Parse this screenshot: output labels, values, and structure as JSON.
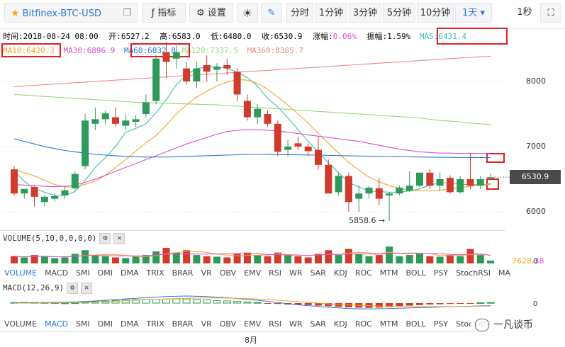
{
  "toolbar": {
    "symbol": "Bitfinex-BTC-USD",
    "indicators_label": "指标",
    "settings_label": "设置",
    "intervals": [
      "分时",
      "1分钟",
      "3分钟",
      "5分钟",
      "10分钟",
      "1天"
    ],
    "active_interval": "1天",
    "refresh_label": "1秒",
    "icons": [
      "star-icon",
      "popout-icon",
      "indicators-icon",
      "gear-icon",
      "theme-icon",
      "draw-icon",
      "fullscreen-icon"
    ]
  },
  "info": {
    "time": "时间:2018-08-24 08:00",
    "open": "开:6527.2",
    "high": "高:6583.0",
    "low": "低:6480.0",
    "close": "收:6530.9",
    "change_label": "涨幅:",
    "change_value": "0.06%",
    "amplitude": "振幅:1.59%",
    "ma5": "MA5:6431.4",
    "ma10": "MA10:6420.3",
    "ma30": "MA30:6896.9",
    "ma60": "MA60:6832.8",
    "ma120": "MA120:7337.5",
    "ma360": "MA360:8385.7"
  },
  "colors": {
    "up": "#2e9a5a",
    "down": "#d13b2e",
    "ma5": "#3cc0b0",
    "ma10": "#f2a62a",
    "ma30": "#d94fd0",
    "ma60": "#2a78d8",
    "ma120": "#9bd67a",
    "ma360": "#f08a8a",
    "highlight": "#e02020"
  },
  "chart_data": {
    "type": "candlestick",
    "title": "Bitfinex-BTC-USD",
    "y_ticks": [
      6000,
      7000,
      8000
    ],
    "ylim": [
      5650,
      8600
    ],
    "current_price": "6530.9",
    "low_annotation": "5858.6 →",
    "x_tick_label": "8月",
    "candles": [
      {
        "o": 6650,
        "h": 6700,
        "l": 6250,
        "c": 6280
      },
      {
        "o": 6280,
        "h": 6350,
        "l": 6200,
        "c": 6350
      },
      {
        "o": 6380,
        "h": 6400,
        "l": 6080,
        "c": 6230
      },
      {
        "o": 6150,
        "h": 6250,
        "l": 6080,
        "c": 6230
      },
      {
        "o": 6200,
        "h": 6280,
        "l": 6160,
        "c": 6240
      },
      {
        "o": 6250,
        "h": 6380,
        "l": 6200,
        "c": 6330
      },
      {
        "o": 6360,
        "h": 6620,
        "l": 6330,
        "c": 6580
      },
      {
        "o": 6700,
        "h": 7500,
        "l": 6650,
        "c": 7400
      },
      {
        "o": 7350,
        "h": 7600,
        "l": 7250,
        "c": 7420
      },
      {
        "o": 7420,
        "h": 7550,
        "l": 7330,
        "c": 7510
      },
      {
        "o": 7450,
        "h": 7600,
        "l": 7300,
        "c": 7350
      },
      {
        "o": 7320,
        "h": 7500,
        "l": 7250,
        "c": 7400
      },
      {
        "o": 7380,
        "h": 7480,
        "l": 7300,
        "c": 7420
      },
      {
        "o": 7500,
        "h": 7800,
        "l": 7450,
        "c": 7680
      },
      {
        "o": 7700,
        "h": 8400,
        "l": 7650,
        "c": 8350
      },
      {
        "o": 8450,
        "h": 8600,
        "l": 8050,
        "c": 8300
      },
      {
        "o": 8350,
        "h": 8550,
        "l": 8200,
        "c": 8450
      },
      {
        "o": 8200,
        "h": 8300,
        "l": 7950,
        "c": 8000
      },
      {
        "o": 8000,
        "h": 8300,
        "l": 7900,
        "c": 8200
      },
      {
        "o": 8250,
        "h": 8400,
        "l": 8000,
        "c": 8150
      },
      {
        "o": 8180,
        "h": 8280,
        "l": 8000,
        "c": 8220
      },
      {
        "o": 8250,
        "h": 8350,
        "l": 8100,
        "c": 8200
      },
      {
        "o": 8150,
        "h": 8200,
        "l": 7700,
        "c": 7800
      },
      {
        "o": 7700,
        "h": 7800,
        "l": 7400,
        "c": 7450
      },
      {
        "o": 7450,
        "h": 7650,
        "l": 7350,
        "c": 7580
      },
      {
        "o": 7500,
        "h": 7550,
        "l": 7300,
        "c": 7350
      },
      {
        "o": 7350,
        "h": 7400,
        "l": 6850,
        "c": 6920
      },
      {
        "o": 6950,
        "h": 7100,
        "l": 6850,
        "c": 7000
      },
      {
        "o": 7050,
        "h": 7150,
        "l": 6950,
        "c": 7000
      },
      {
        "o": 7000,
        "h": 7050,
        "l": 6850,
        "c": 6930
      },
      {
        "o": 6950,
        "h": 7150,
        "l": 6650,
        "c": 6720
      },
      {
        "o": 6720,
        "h": 6800,
        "l": 6280,
        "c": 6280
      },
      {
        "o": 6300,
        "h": 6600,
        "l": 6250,
        "c": 6550
      },
      {
        "o": 6550,
        "h": 6600,
        "l": 6000,
        "c": 6150
      },
      {
        "o": 6200,
        "h": 6400,
        "l": 6000,
        "c": 6280
      },
      {
        "o": 6280,
        "h": 6400,
        "l": 6200,
        "c": 6370
      },
      {
        "o": 6360,
        "h": 6520,
        "l": 6100,
        "c": 6200
      },
      {
        "o": 6250,
        "h": 6300,
        "l": 5858.6,
        "c": 6280
      },
      {
        "o": 6280,
        "h": 6400,
        "l": 6250,
        "c": 6370
      },
      {
        "o": 6320,
        "h": 6620,
        "l": 6300,
        "c": 6400
      },
      {
        "o": 6400,
        "h": 6580,
        "l": 6380,
        "c": 6600
      },
      {
        "o": 6600,
        "h": 6650,
        "l": 6350,
        "c": 6400
      },
      {
        "o": 6400,
        "h": 6600,
        "l": 6320,
        "c": 6500
      },
      {
        "o": 6520,
        "h": 6560,
        "l": 6280,
        "c": 6300
      },
      {
        "o": 6300,
        "h": 6550,
        "l": 6280,
        "c": 6500
      },
      {
        "o": 6500,
        "h": 6900,
        "l": 6350,
        "c": 6400
      },
      {
        "o": 6400,
        "h": 6550,
        "l": 6350,
        "c": 6500
      },
      {
        "o": 6527.2,
        "h": 6583.0,
        "l": 6480.0,
        "c": 6530.9
      }
    ],
    "ma_series": [
      {
        "key": "ma5",
        "values": [
          6620,
          6470,
          6350,
          6300,
          6250,
          6250,
          6310,
          6480,
          6680,
          6830,
          7000,
          7220,
          7280,
          7350,
          7520,
          7720,
          7950,
          8100,
          8200,
          8220,
          8230,
          8200,
          8140,
          8060,
          7930,
          7740,
          7610,
          7440,
          7260,
          7080,
          6920,
          6750,
          6600,
          6450,
          6380,
          6320,
          6310,
          6300,
          6300,
          6320,
          6350,
          6410,
          6440,
          6450,
          6420,
          6420,
          6410,
          6431.4
        ]
      },
      {
        "key": "ma10",
        "values": [
          6650,
          6600,
          6550,
          6480,
          6420,
          6380,
          6380,
          6420,
          6470,
          6560,
          6680,
          6800,
          6930,
          7060,
          7170,
          7330,
          7500,
          7640,
          7760,
          7850,
          7930,
          7990,
          8030,
          8020,
          7970,
          7880,
          7760,
          7640,
          7500,
          7360,
          7200,
          7050,
          6900,
          6760,
          6640,
          6530,
          6460,
          6400,
          6360,
          6330,
          6320,
          6320,
          6330,
          6350,
          6370,
          6390,
          6410,
          6420.3
        ]
      },
      {
        "key": "ma30",
        "values": [
          6420,
          6410,
          6400,
          6390,
          6385,
          6390,
          6410,
          6450,
          6500,
          6560,
          6620,
          6680,
          6740,
          6800,
          6860,
          6920,
          6980,
          7040,
          7090,
          7140,
          7190,
          7230,
          7250,
          7260,
          7260,
          7250,
          7240,
          7220,
          7200,
          7180,
          7160,
          7140,
          7120,
          7100,
          7080,
          7050,
          7020,
          6990,
          6960,
          6940,
          6920,
          6910,
          6900,
          6900,
          6895,
          6895,
          6896,
          6896.9
        ]
      },
      {
        "key": "ma60",
        "values": [
          7120,
          7080,
          7040,
          7000,
          6970,
          6940,
          6920,
          6900,
          6880,
          6870,
          6860,
          6850,
          6845,
          6840,
          6840,
          6840,
          6845,
          6850,
          6855,
          6860,
          6865,
          6870,
          6875,
          6880,
          6880,
          6880,
          6878,
          6876,
          6874,
          6872,
          6870,
          6866,
          6862,
          6858,
          6855,
          6852,
          6850,
          6848,
          6845,
          6842,
          6840,
          6838,
          6836,
          6835,
          6834,
          6833,
          6833,
          6832.8
        ]
      },
      {
        "key": "ma120",
        "values": [
          7800,
          7790,
          7780,
          7770,
          7760,
          7750,
          7740,
          7730,
          7720,
          7710,
          7700,
          7690,
          7680,
          7675,
          7670,
          7665,
          7660,
          7655,
          7650,
          7645,
          7640,
          7630,
          7620,
          7610,
          7600,
          7590,
          7580,
          7570,
          7560,
          7550,
          7540,
          7530,
          7520,
          7510,
          7500,
          7490,
          7480,
          7470,
          7460,
          7450,
          7440,
          7420,
          7400,
          7390,
          7380,
          7360,
          7350,
          7337.5
        ]
      },
      {
        "key": "ma360",
        "values": [
          7920,
          7930,
          7940,
          7950,
          7960,
          7970,
          7980,
          7990,
          8000,
          8010,
          8020,
          8030,
          8040,
          8050,
          8060,
          8070,
          8080,
          8090,
          8100,
          8110,
          8120,
          8130,
          8140,
          8150,
          8160,
          8170,
          8180,
          8190,
          8200,
          8210,
          8220,
          8230,
          8240,
          8250,
          8260,
          8270,
          8280,
          8290,
          8300,
          8310,
          8320,
          8330,
          8340,
          8350,
          8360,
          8370,
          8378,
          8385.7
        ]
      }
    ],
    "volume": {
      "header": "VOLUME(5,10,0,0,0,0)",
      "values": [
        0.3,
        0.25,
        0.35,
        0.28,
        0.22,
        0.25,
        0.4,
        0.55,
        0.35,
        0.3,
        0.25,
        0.22,
        0.3,
        0.35,
        0.5,
        0.65,
        0.45,
        0.55,
        0.35,
        0.3,
        0.28,
        0.25,
        0.4,
        0.45,
        0.35,
        0.3,
        0.45,
        0.35,
        0.3,
        0.25,
        0.4,
        0.55,
        0.35,
        0.6,
        0.4,
        0.3,
        0.35,
        0.7,
        0.3,
        0.35,
        0.4,
        0.3,
        0.28,
        0.35,
        0.3,
        0.6,
        0.35,
        0.12
      ],
      "ma_value": "7628",
      "ma_suffix": ".38",
      "zero_label": "0"
    },
    "macd": {
      "header": "MACD(12,26,9)",
      "zero_label": "0",
      "hist": [
        0.1,
        0.12,
        0.1,
        0.08,
        0.05,
        0.02,
        0.05,
        0.15,
        0.25,
        0.35,
        0.45,
        0.55,
        0.6,
        0.62,
        0.65,
        0.7,
        0.75,
        0.72,
        0.65,
        0.55,
        0.45,
        0.38,
        0.3,
        0.2,
        0.1,
        -0.05,
        -0.15,
        -0.25,
        -0.3,
        -0.35,
        -0.45,
        -0.55,
        -0.65,
        -0.75,
        -0.8,
        -0.85,
        -0.8,
        -0.7,
        -0.55,
        -0.45,
        -0.35,
        -0.25,
        -0.2,
        -0.15,
        -0.1,
        -0.05,
        0.05,
        0.1
      ],
      "dif": [
        0.05,
        0.06,
        0.08,
        0.1,
        0.12,
        0.15,
        0.2,
        0.28,
        0.38,
        0.5,
        0.62,
        0.75,
        0.85,
        0.95,
        1.05,
        1.15,
        1.2,
        1.25,
        1.2,
        1.15,
        1.05,
        0.95,
        0.8,
        0.65,
        0.5,
        0.3,
        0.1,
        -0.1,
        -0.3,
        -0.45,
        -0.6,
        -0.75,
        -0.85,
        -0.95,
        -1.0,
        -1.02,
        -1.0,
        -0.95,
        -0.9,
        -0.85,
        -0.8,
        -0.75,
        -0.7,
        -0.65,
        -0.6,
        -0.55,
        -0.5,
        -0.45
      ],
      "dea": [
        0.0,
        0.0,
        0.01,
        0.02,
        0.03,
        0.05,
        0.08,
        0.12,
        0.18,
        0.25,
        0.33,
        0.42,
        0.5,
        0.58,
        0.66,
        0.74,
        0.8,
        0.85,
        0.88,
        0.9,
        0.9,
        0.88,
        0.85,
        0.8,
        0.72,
        0.62,
        0.5,
        0.38,
        0.25,
        0.12,
        0.0,
        -0.12,
        -0.22,
        -0.32,
        -0.4,
        -0.47,
        -0.52,
        -0.55,
        -0.58,
        -0.6,
        -0.62,
        -0.63,
        -0.63,
        -0.62,
        -0.6,
        -0.58,
        -0.56,
        -0.54
      ]
    }
  },
  "indicator_tabs": [
    "VOLUME",
    "MACD",
    "SMI",
    "DMI",
    "DMA",
    "TRIX",
    "BRAR",
    "VR",
    "OBV",
    "EMV",
    "RSI",
    "WR",
    "SAR",
    "KDJ",
    "ROC",
    "MTM",
    "BOLL",
    "PSY",
    "StochRSI",
    "MA"
  ],
  "indicator_tabs_2": [
    "VOLUME",
    "MACD",
    "SMI",
    "DMI",
    "DMA",
    "TRIX",
    "BRAR",
    "VR",
    "OBV",
    "EMV",
    "RSI",
    "WR",
    "SAR",
    "KDJ",
    "ROC",
    "MTM",
    "BOLL",
    "PSY",
    "StochRSI"
  ],
  "selected_tab_1": "VOLUME",
  "selected_tab_2": "MACD",
  "watermark": "一凡谈币"
}
